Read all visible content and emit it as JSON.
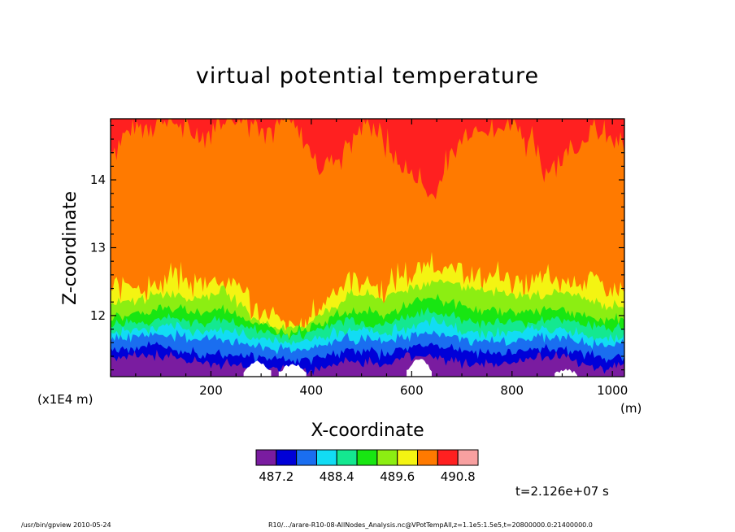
{
  "chart_data": {
    "type": "heatmap",
    "title": "virtual potential temperature",
    "xlabel": "X-coordinate",
    "ylabel": "Z-coordinate",
    "x_unit": "(m)",
    "y_scale_note": "(x1E4 m)",
    "xlim": [
      0,
      1024
    ],
    "ylim": [
      11.1,
      14.9
    ],
    "x_ticks": [
      200,
      400,
      600,
      800,
      1000
    ],
    "x_tick_labels": [
      "200",
      "400",
      "600",
      "800",
      "1000"
    ],
    "y_ticks": [
      12,
      13,
      14
    ],
    "y_tick_labels": [
      "12",
      "13",
      "14"
    ],
    "time_label": "t=2.126e+07 s",
    "colorbar": {
      "levels": [
        486.8,
        487.2,
        487.6,
        488.0,
        488.4,
        488.8,
        489.2,
        489.6,
        490.0,
        490.4,
        490.8,
        491.2
      ],
      "colors": [
        "#7a1ca0",
        "#0000d8",
        "#1a6ef0",
        "#12dcf4",
        "#14e890",
        "#18e612",
        "#8cee12",
        "#f4f412",
        "#ff7a00",
        "#ff2020",
        "#f8a0a0"
      ],
      "labels": [
        "487.2",
        "488.4",
        "489.6",
        "490.8"
      ],
      "label_level_index": [
        1,
        4,
        7,
        10
      ]
    },
    "contour_heights": {
      "x": [
        0,
        32,
        64,
        96,
        128,
        160,
        192,
        224,
        256,
        288,
        320,
        352,
        384,
        416,
        448,
        480,
        512,
        544,
        576,
        608,
        640,
        672,
        704,
        736,
        768,
        800,
        832,
        864,
        896,
        928,
        960,
        992,
        1024
      ],
      "boundaries": [
        {
          "between": [
            "490.4",
            "490.8"
          ],
          "z": [
            14.45,
            14.7,
            14.8,
            14.9,
            14.85,
            14.65,
            14.7,
            14.9,
            14.9,
            14.9,
            14.75,
            14.9,
            14.55,
            14.25,
            14.3,
            14.6,
            14.9,
            14.55,
            14.2,
            14.05,
            13.75,
            14.2,
            14.65,
            14.8,
            14.7,
            14.9,
            14.6,
            14.15,
            14.35,
            14.5,
            14.7,
            14.6,
            14.5
          ]
        },
        {
          "between": [
            "490.0",
            "490.4"
          ],
          "z": [
            12.35,
            12.5,
            12.4,
            12.45,
            12.6,
            12.45,
            12.55,
            12.5,
            12.45,
            12.1,
            12.0,
            11.85,
            11.85,
            12.1,
            12.4,
            12.55,
            12.5,
            12.35,
            12.6,
            12.6,
            12.8,
            12.65,
            12.7,
            12.5,
            12.6,
            12.55,
            12.4,
            12.55,
            12.5,
            12.5,
            12.55,
            12.35,
            12.35
          ]
        },
        {
          "between": [
            "489.6",
            "490.0"
          ],
          "z": [
            12.15,
            12.2,
            12.25,
            12.3,
            12.35,
            12.25,
            12.3,
            12.35,
            12.2,
            11.95,
            11.85,
            11.8,
            11.85,
            12.0,
            12.15,
            12.3,
            12.3,
            12.25,
            12.35,
            12.45,
            12.5,
            12.5,
            12.45,
            12.35,
            12.35,
            12.3,
            12.3,
            12.3,
            12.35,
            12.3,
            12.2,
            12.15,
            12.15
          ]
        },
        {
          "between": [
            "489.2",
            "489.6"
          ],
          "z": [
            11.95,
            12.0,
            12.05,
            12.1,
            12.1,
            12.05,
            12.05,
            12.1,
            12.0,
            11.9,
            11.8,
            11.75,
            11.8,
            11.9,
            12.0,
            12.05,
            12.05,
            12.0,
            12.1,
            12.2,
            12.25,
            12.2,
            12.15,
            12.05,
            12.1,
            12.05,
            12.05,
            12.1,
            12.1,
            12.05,
            11.95,
            11.95,
            11.95
          ]
        },
        {
          "between": [
            "488.8",
            "489.2"
          ],
          "z": [
            11.85,
            11.9,
            11.9,
            11.95,
            11.95,
            11.9,
            11.9,
            11.95,
            11.85,
            11.8,
            11.75,
            11.7,
            11.72,
            11.8,
            11.9,
            11.95,
            11.9,
            11.85,
            11.95,
            12.0,
            12.05,
            12.0,
            11.95,
            11.9,
            11.9,
            11.9,
            11.9,
            11.95,
            11.95,
            11.9,
            11.85,
            11.8,
            11.85
          ]
        },
        {
          "between": [
            "488.4",
            "488.8"
          ],
          "z": [
            11.75,
            11.78,
            11.8,
            11.82,
            11.82,
            11.78,
            11.78,
            11.8,
            11.72,
            11.68,
            11.65,
            11.6,
            11.62,
            11.68,
            11.75,
            11.8,
            11.78,
            11.72,
            11.8,
            11.85,
            11.9,
            11.85,
            11.8,
            11.75,
            11.75,
            11.75,
            11.78,
            11.8,
            11.8,
            11.75,
            11.7,
            11.68,
            11.72
          ]
        },
        {
          "between": [
            "488.0",
            "488.4"
          ],
          "z": [
            11.65,
            11.68,
            11.7,
            11.72,
            11.7,
            11.66,
            11.65,
            11.66,
            11.6,
            11.55,
            11.52,
            11.5,
            11.5,
            11.55,
            11.62,
            11.66,
            11.65,
            11.6,
            11.66,
            11.7,
            11.75,
            11.7,
            11.66,
            11.62,
            11.62,
            11.62,
            11.65,
            11.68,
            11.68,
            11.62,
            11.58,
            11.55,
            11.6
          ]
        },
        {
          "between": [
            "487.6",
            "488.0"
          ],
          "z": [
            11.5,
            11.52,
            11.55,
            11.55,
            11.52,
            11.48,
            11.45,
            11.45,
            11.42,
            11.38,
            11.36,
            11.35,
            11.35,
            11.38,
            11.45,
            11.5,
            11.48,
            11.42,
            11.5,
            11.55,
            11.58,
            11.52,
            11.48,
            11.45,
            11.45,
            11.45,
            11.5,
            11.52,
            11.52,
            11.46,
            11.4,
            11.38,
            11.42
          ]
        },
        {
          "between": [
            "487.2",
            "487.6"
          ],
          "z": [
            11.38,
            11.4,
            11.42,
            11.42,
            11.38,
            11.32,
            11.3,
            11.28,
            11.26,
            11.22,
            11.22,
            11.2,
            11.2,
            11.22,
            11.28,
            11.34,
            11.3,
            11.26,
            11.35,
            11.4,
            11.42,
            11.35,
            11.3,
            11.28,
            11.28,
            11.3,
            11.35,
            11.38,
            11.38,
            11.3,
            11.25,
            11.22,
            11.28
          ]
        }
      ]
    },
    "white_patches": [
      {
        "x": [
          265,
          320
        ],
        "z_top": 11.32
      },
      {
        "x": [
          335,
          390
        ],
        "z_top": 11.28
      },
      {
        "x": [
          590,
          640
        ],
        "z_top": 11.36
      },
      {
        "x": [
          885,
          930
        ],
        "z_top": 11.2
      }
    ]
  },
  "footer": {
    "left": "/usr/bin/gpview   2010-05-24",
    "right": "R10/.../arare-R10-08-AllNodes_Analysis.nc@VPotTempAll,z=1.1e5:1.5e5,t=20800000.0:21400000.0"
  }
}
